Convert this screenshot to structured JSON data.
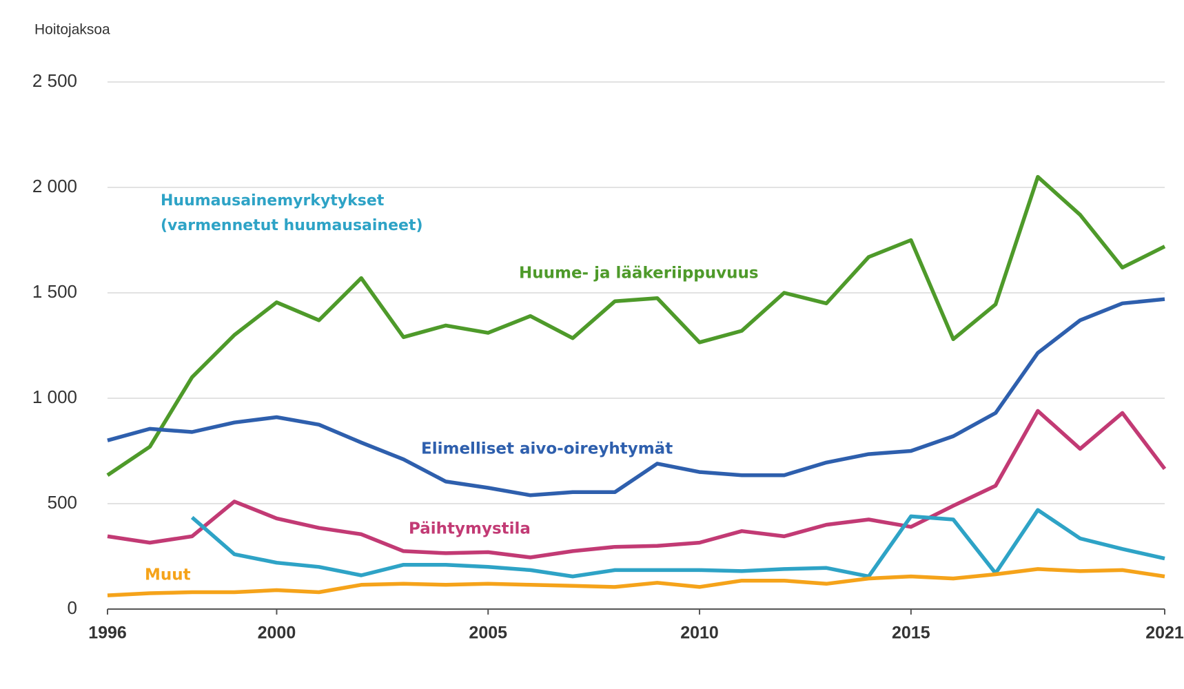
{
  "chart_data": {
    "type": "line",
    "y_label": "Hoitojaksoa",
    "x": [
      1996,
      1997,
      1998,
      1999,
      2000,
      2001,
      2002,
      2003,
      2004,
      2005,
      2006,
      2007,
      2008,
      2009,
      2010,
      2011,
      2012,
      2013,
      2014,
      2015,
      2016,
      2017,
      2018,
      2019,
      2020,
      2021
    ],
    "xlim": [
      1996,
      2021
    ],
    "xticks": [
      1996,
      2000,
      2005,
      2010,
      2015,
      2021
    ],
    "ylim": [
      0,
      2500
    ],
    "yticks": [
      0,
      500,
      {
        "value": 1000,
        "label": "1 000"
      },
      {
        "value": 1500,
        "label": "1 500"
      },
      {
        "value": 2000,
        "label": "2 000"
      },
      {
        "value": 2500,
        "label": "2 500"
      }
    ],
    "grid": true,
    "series": [
      {
        "name": "Huume- ja lääkeriippuvuus",
        "color": "#4e9a2a",
        "values": [
          635,
          770,
          1100,
          1300,
          1455,
          1370,
          1570,
          1290,
          1345,
          1310,
          1390,
          1285,
          1460,
          1475,
          1265,
          1320,
          1500,
          1450,
          1670,
          1750,
          1280,
          1445,
          2050,
          1870,
          1620,
          1720
        ]
      },
      {
        "name": "Elimelliset aivo-oireyhtymät",
        "color": "#2e5fad",
        "values": [
          800,
          855,
          840,
          885,
          910,
          875,
          790,
          710,
          605,
          575,
          540,
          555,
          555,
          690,
          650,
          635,
          635,
          695,
          735,
          750,
          820,
          930,
          1215,
          1370,
          1450,
          1470
        ]
      },
      {
        "name": "Päihtymystila",
        "color": "#c23a74",
        "values": [
          345,
          315,
          345,
          510,
          430,
          385,
          355,
          275,
          265,
          270,
          245,
          275,
          295,
          300,
          315,
          370,
          345,
          400,
          425,
          390,
          490,
          585,
          940,
          760,
          930,
          665
        ]
      },
      {
        "name": "Huumausainemyrkytykset (varmennetut huumausaineet)",
        "color": "#2ea3c6",
        "values": [
          null,
          null,
          435,
          260,
          220,
          200,
          160,
          210,
          210,
          200,
          185,
          155,
          185,
          185,
          185,
          180,
          190,
          195,
          155,
          440,
          425,
          170,
          470,
          335,
          285,
          240
        ]
      },
      {
        "name": "Muut",
        "color": "#f5a31a",
        "values": [
          65,
          75,
          80,
          80,
          90,
          80,
          115,
          120,
          115,
          120,
          115,
          110,
          105,
          125,
          105,
          135,
          135,
          120,
          145,
          155,
          145,
          165,
          190,
          180,
          185,
          155
        ]
      }
    ]
  }
}
